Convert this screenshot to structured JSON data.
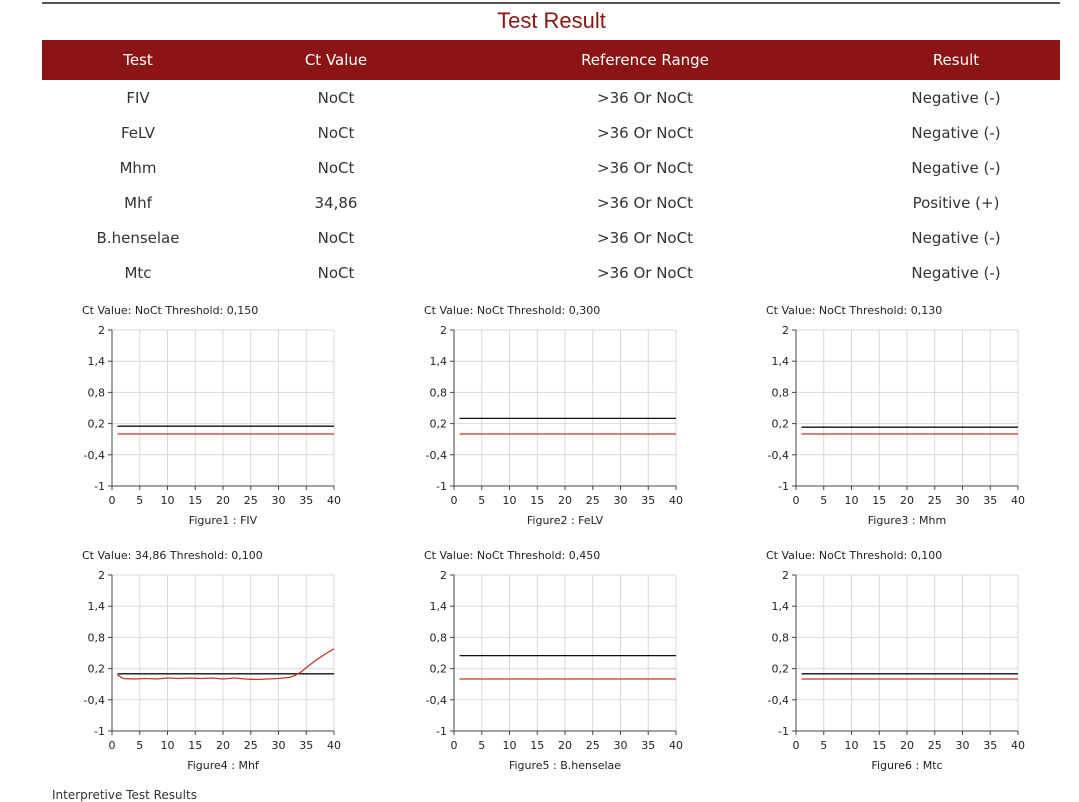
{
  "title": "Test Result",
  "table": {
    "headers": [
      "Test",
      "Ct Value",
      "Reference Range",
      "Result"
    ],
    "rows": [
      {
        "test": "FIV",
        "ct": "NoCt",
        "range": ">36 Or NoCt",
        "result": "Negative (-)"
      },
      {
        "test": "FeLV",
        "ct": "NoCt",
        "range": ">36 Or NoCt",
        "result": "Negative (-)"
      },
      {
        "test": "Mhm",
        "ct": "NoCt",
        "range": ">36 Or NoCt",
        "result": "Negative (-)"
      },
      {
        "test": "Mhf",
        "ct": "34,86",
        "range": ">36 Or NoCt",
        "result": "Positive (+)"
      },
      {
        "test": "B.henselae",
        "ct": "NoCt",
        "range": ">36 Or NoCt",
        "result": "Negative (-)"
      },
      {
        "test": "Mtc",
        "ct": "NoCt",
        "range": ">36 Or NoCt",
        "result": "Negative (-)"
      }
    ]
  },
  "colors": {
    "brand": "#8b1515",
    "threshold_line": "#111111",
    "curve": "#c0392b",
    "grid": "#d9d9d9"
  },
  "chart_data": [
    {
      "type": "line",
      "title": "Ct Value: NoCt  Threshold: 0,150",
      "xlabel": "Figure1 : FIV",
      "x_ticks": [
        "0",
        "5",
        "10",
        "15",
        "20",
        "25",
        "30",
        "35",
        "40"
      ],
      "y_ticks": [
        "-1",
        "-0,4",
        "0,2",
        "0,8",
        "1,4",
        "2"
      ],
      "xlim": [
        0,
        40
      ],
      "ylim": [
        -1,
        2
      ],
      "grid": true,
      "series": [
        {
          "color": "#111111",
          "x": [
            1,
            40
          ],
          "y": [
            0.15,
            0.15
          ]
        },
        {
          "color": "#c0392b",
          "x": [
            1,
            40
          ],
          "y": [
            0.0,
            0.0
          ]
        }
      ]
    },
    {
      "type": "line",
      "title": "Ct Value: NoCt  Threshold: 0,300",
      "xlabel": "Figure2 : FeLV",
      "x_ticks": [
        "0",
        "5",
        "10",
        "15",
        "20",
        "25",
        "30",
        "35",
        "40"
      ],
      "y_ticks": [
        "-1",
        "-0,4",
        "0,2",
        "0,8",
        "1,4",
        "2"
      ],
      "xlim": [
        0,
        40
      ],
      "ylim": [
        -1,
        2
      ],
      "grid": true,
      "series": [
        {
          "color": "#111111",
          "x": [
            1,
            40
          ],
          "y": [
            0.3,
            0.3
          ]
        },
        {
          "color": "#c0392b",
          "x": [
            1,
            40
          ],
          "y": [
            0.0,
            0.0
          ]
        }
      ]
    },
    {
      "type": "line",
      "title": "Ct Value: NoCt  Threshold: 0,130",
      "xlabel": "Figure3 : Mhm",
      "x_ticks": [
        "0",
        "5",
        "10",
        "15",
        "20",
        "25",
        "30",
        "35",
        "40"
      ],
      "y_ticks": [
        "-1",
        "-0,4",
        "0,2",
        "0,8",
        "1,4",
        "2"
      ],
      "xlim": [
        0,
        40
      ],
      "ylim": [
        -1,
        2
      ],
      "grid": true,
      "series": [
        {
          "color": "#111111",
          "x": [
            1,
            40
          ],
          "y": [
            0.13,
            0.13
          ]
        },
        {
          "color": "#c0392b",
          "x": [
            1,
            40
          ],
          "y": [
            0.0,
            0.0
          ]
        }
      ]
    },
    {
      "type": "line",
      "title": "Ct Value: 34,86  Threshold: 0,100",
      "xlabel": "Figure4 : Mhf",
      "x_ticks": [
        "0",
        "5",
        "10",
        "15",
        "20",
        "25",
        "30",
        "35",
        "40"
      ],
      "y_ticks": [
        "-1",
        "-0,4",
        "0,2",
        "0,8",
        "1,4",
        "2"
      ],
      "xlim": [
        0,
        40
      ],
      "ylim": [
        -1,
        2
      ],
      "grid": true,
      "series": [
        {
          "color": "#111111",
          "x": [
            1,
            40
          ],
          "y": [
            0.1,
            0.1
          ]
        },
        {
          "color": "#c0392b",
          "x": [
            1,
            2,
            4,
            6,
            8,
            10,
            12,
            14,
            16,
            18,
            20,
            22,
            24,
            26,
            28,
            30,
            32,
            33,
            34,
            35,
            36,
            37,
            38,
            39,
            40
          ],
          "y": [
            0.08,
            0.01,
            0.0,
            0.01,
            0.0,
            0.02,
            0.01,
            0.02,
            0.01,
            0.02,
            0.0,
            0.02,
            0.0,
            -0.01,
            0.0,
            0.01,
            0.03,
            0.07,
            0.13,
            0.22,
            0.3,
            0.38,
            0.45,
            0.52,
            0.58
          ]
        }
      ]
    },
    {
      "type": "line",
      "title": "Ct Value: NoCt  Threshold: 0,450",
      "xlabel": "Figure5 : B.henselae",
      "x_ticks": [
        "0",
        "5",
        "10",
        "15",
        "20",
        "25",
        "30",
        "35",
        "40"
      ],
      "y_ticks": [
        "-1",
        "-0,4",
        "0,2",
        "0,8",
        "1,4",
        "2"
      ],
      "xlim": [
        0,
        40
      ],
      "ylim": [
        -1,
        2
      ],
      "grid": true,
      "series": [
        {
          "color": "#111111",
          "x": [
            1,
            40
          ],
          "y": [
            0.45,
            0.45
          ]
        },
        {
          "color": "#c0392b",
          "x": [
            1,
            40
          ],
          "y": [
            0.0,
            0.0
          ]
        }
      ]
    },
    {
      "type": "line",
      "title": "Ct Value: NoCt  Threshold: 0,100",
      "xlabel": "Figure6 : Mtc",
      "x_ticks": [
        "0",
        "5",
        "10",
        "15",
        "20",
        "25",
        "30",
        "35",
        "40"
      ],
      "y_ticks": [
        "-1",
        "-0,4",
        "0,2",
        "0,8",
        "1,4",
        "2"
      ],
      "xlim": [
        0,
        40
      ],
      "ylim": [
        -1,
        2
      ],
      "grid": true,
      "series": [
        {
          "color": "#111111",
          "x": [
            1,
            40
          ],
          "y": [
            0.1,
            0.1
          ]
        },
        {
          "color": "#c0392b",
          "x": [
            1,
            40
          ],
          "y": [
            0.0,
            0.0
          ]
        }
      ]
    }
  ],
  "footer": "Interpretive Test Results"
}
